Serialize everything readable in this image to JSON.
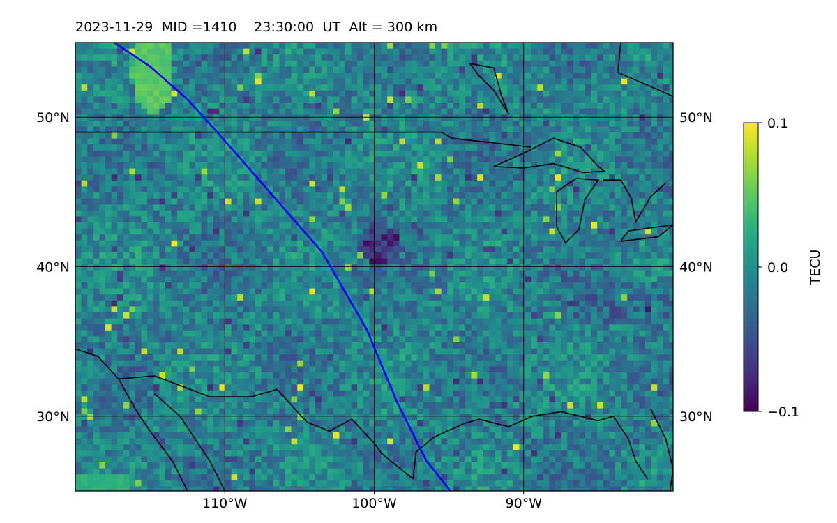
{
  "title": "2023-11-29  MID =1410    23:30:00  UT  Alt = 300 km",
  "map": {
    "lon_range": [
      -120,
      -80
    ],
    "lat_range": [
      25,
      55
    ],
    "lon_ticks": [
      {
        "value": -110,
        "label": "110°W"
      },
      {
        "value": -100,
        "label": "100°W"
      },
      {
        "value": -90,
        "label": "90°W"
      }
    ],
    "lat_ticks": [
      {
        "value": 50,
        "label": "50°N"
      },
      {
        "value": 40,
        "label": "40°N"
      },
      {
        "value": 30,
        "label": "30°N"
      }
    ],
    "gridlines": true,
    "colormap": "viridis",
    "track_color": "#0000ff",
    "coastline_color": "#000000"
  },
  "colorbar": {
    "label": "TECU",
    "min": -0.1,
    "max": 0.1,
    "ticks": [
      {
        "value": 0.1,
        "label": "0.1"
      },
      {
        "value": 0.0,
        "label": "0.0"
      },
      {
        "value": -0.1,
        "label": "−0.1"
      }
    ]
  },
  "satellite_track": [
    [
      -117.4,
      55.0
    ],
    [
      -115.0,
      53.4
    ],
    [
      -112.5,
      51.2
    ],
    [
      -110.5,
      49.0
    ],
    [
      -107.0,
      45.0
    ],
    [
      -103.5,
      41.0
    ],
    [
      -100.5,
      35.8
    ],
    [
      -98.5,
      31.0
    ],
    [
      -96.5,
      27.0
    ],
    [
      -94.9,
      25.0
    ]
  ],
  "boundaries": [
    {
      "name": "us-canada-border",
      "points": [
        [
          -120,
          49
        ],
        [
          -95.5,
          49
        ],
        [
          -94.8,
          48.6
        ],
        [
          -89.5,
          48.0
        ]
      ]
    },
    {
      "name": "lake-superior",
      "points": [
        [
          -92.0,
          46.7
        ],
        [
          -90.0,
          47.6
        ],
        [
          -88.0,
          48.6
        ],
        [
          -86.2,
          48.0
        ],
        [
          -85.0,
          46.7
        ],
        [
          -84.6,
          46.4
        ],
        [
          -86.0,
          46.3
        ],
        [
          -88.0,
          46.9
        ],
        [
          -90.0,
          46.6
        ],
        [
          -92.0,
          46.7
        ]
      ]
    },
    {
      "name": "lake-michigan",
      "points": [
        [
          -87.8,
          45.0
        ],
        [
          -86.5,
          45.9
        ],
        [
          -85.0,
          45.8
        ],
        [
          -85.9,
          44.5
        ],
        [
          -86.3,
          42.5
        ],
        [
          -87.2,
          41.6
        ],
        [
          -87.8,
          42.7
        ],
        [
          -87.8,
          45.0
        ]
      ]
    },
    {
      "name": "lake-huron-east",
      "points": [
        [
          -84.7,
          45.8
        ],
        [
          -83.5,
          45.8
        ],
        [
          -82.8,
          44.6
        ],
        [
          -82.5,
          43.0
        ],
        [
          -81.5,
          44.7
        ],
        [
          -80.5,
          45.6
        ]
      ]
    },
    {
      "name": "lake-erie",
      "points": [
        [
          -83.5,
          41.7
        ],
        [
          -81.0,
          42.0
        ],
        [
          -80.0,
          42.8
        ],
        [
          -83.0,
          42.4
        ],
        [
          -83.5,
          41.7
        ]
      ]
    },
    {
      "name": "hudson-bay-coast",
      "points": [
        [
          -83.5,
          55.0
        ],
        [
          -83.7,
          53.0
        ],
        [
          -82.3,
          52.4
        ],
        [
          -80.0,
          51.4
        ]
      ]
    },
    {
      "name": "akimiski-island",
      "points": [
        [
          -93.6,
          53.6
        ],
        [
          -92.0,
          53.3
        ],
        [
          -91.5,
          51.5
        ],
        [
          -91.0,
          50.2
        ],
        [
          -92.0,
          51.8
        ],
        [
          -93.0,
          52.8
        ],
        [
          -93.6,
          53.6
        ]
      ]
    },
    {
      "name": "us-mexico-border",
      "points": [
        [
          -117.1,
          32.5
        ],
        [
          -114.7,
          32.7
        ],
        [
          -111.0,
          31.3
        ],
        [
          -108.2,
          31.3
        ],
        [
          -106.5,
          31.8
        ],
        [
          -104.5,
          29.6
        ],
        [
          -103.0,
          29.0
        ],
        [
          -101.5,
          29.8
        ],
        [
          -100.0,
          28.2
        ],
        [
          -99.5,
          27.5
        ],
        [
          -97.4,
          25.8
        ]
      ]
    },
    {
      "name": "gulf-coast",
      "points": [
        [
          -97.4,
          25.8
        ],
        [
          -97.2,
          27.6
        ],
        [
          -96.0,
          28.6
        ],
        [
          -94.0,
          29.5
        ],
        [
          -93.0,
          29.8
        ],
        [
          -91.0,
          29.3
        ],
        [
          -89.4,
          30.0
        ],
        [
          -87.5,
          30.3
        ],
        [
          -85.0,
          29.7
        ],
        [
          -84.0,
          30.0
        ],
        [
          -83.0,
          28.5
        ],
        [
          -82.5,
          27.0
        ],
        [
          -81.7,
          25.8
        ]
      ]
    },
    {
      "name": "baja-california",
      "points": [
        [
          -117.1,
          32.5
        ],
        [
          -116.0,
          30.5
        ],
        [
          -115.0,
          29.0
        ],
        [
          -113.5,
          27.0
        ],
        [
          -112.5,
          25.0
        ]
      ]
    },
    {
      "name": "sonora-coast",
      "points": [
        [
          -114.7,
          31.5
        ],
        [
          -113.0,
          30.0
        ],
        [
          -112.0,
          28.5
        ],
        [
          -111.0,
          27.0
        ],
        [
          -110.0,
          25.0
        ]
      ]
    },
    {
      "name": "pacific-coast",
      "points": [
        [
          -120.0,
          34.5
        ],
        [
          -118.5,
          34.0
        ],
        [
          -117.1,
          32.5
        ]
      ]
    },
    {
      "name": "florida-atlantic",
      "points": [
        [
          -81.5,
          30.5
        ],
        [
          -80.5,
          28.5
        ],
        [
          -80.0,
          26.5
        ],
        [
          -80.2,
          25.0
        ]
      ]
    }
  ]
}
